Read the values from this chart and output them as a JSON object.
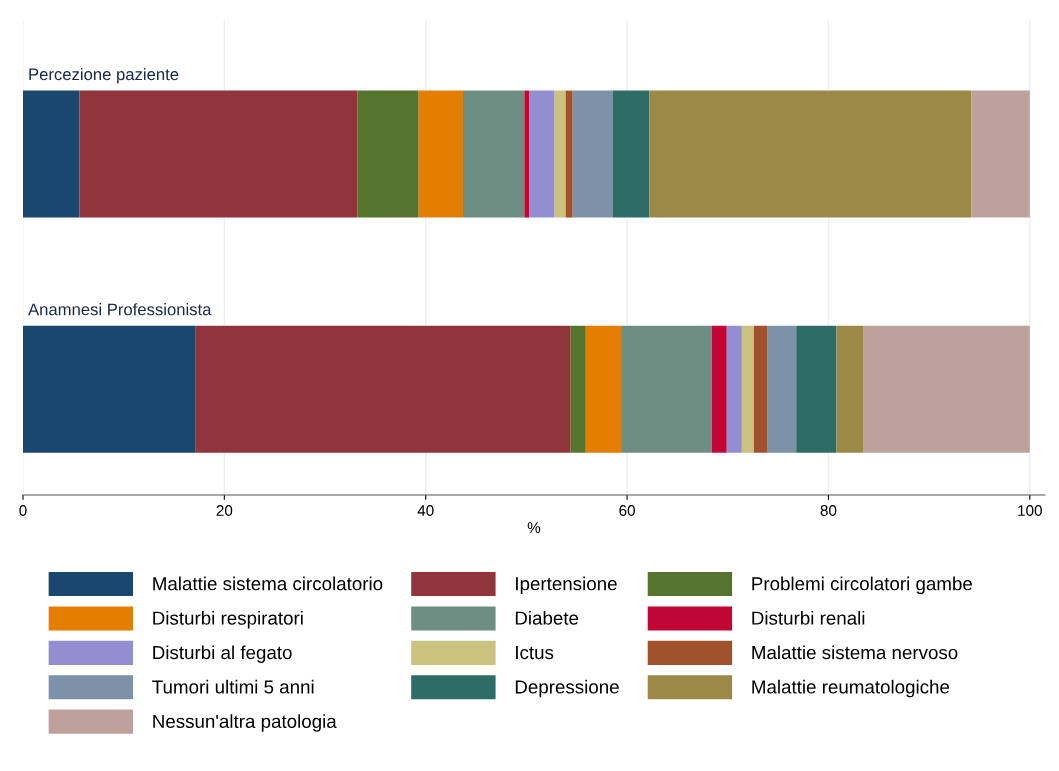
{
  "chart_data": {
    "type": "bar",
    "orientation": "horizontal",
    "stacked": true,
    "xlabel": "%",
    "categories": [
      "Percezione paziente",
      "Anamnesi Professionista"
    ],
    "xlim": [
      0,
      101.5
    ],
    "xticks": [
      0,
      20,
      40,
      60,
      80,
      100
    ],
    "grid": "x",
    "legend": "bottom",
    "series": [
      {
        "name": "Malattie sistema circolatorio",
        "color": "#1a476f",
        "values": [
          5.6,
          17.1
        ]
      },
      {
        "name": "Ipertensione",
        "color": "#90353b",
        "values": [
          27.6,
          37.3
        ]
      },
      {
        "name": "Problemi circolatori gambe",
        "color": "#55752f",
        "values": [
          6.1,
          1.5
        ]
      },
      {
        "name": "Disturbi respiratori",
        "color": "#e37e00",
        "values": [
          4.4,
          3.5
        ]
      },
      {
        "name": "Diabete",
        "color": "#6e8e84",
        "values": [
          6.1,
          9.0
        ]
      },
      {
        "name": "Disturbi renali",
        "color": "#c10534",
        "values": [
          0.5,
          1.5
        ]
      },
      {
        "name": "Disturbi al fegato",
        "color": "#938dd2",
        "values": [
          2.5,
          1.5
        ]
      },
      {
        "name": "Ictus",
        "color": "#cac27e",
        "values": [
          1.1,
          1.2
        ]
      },
      {
        "name": "Malattie sistema nervoso",
        "color": "#a0522d",
        "values": [
          0.7,
          1.3
        ]
      },
      {
        "name": "Tumori ultimi 5 anni",
        "color": "#7b92a8",
        "values": [
          4.0,
          2.9
        ]
      },
      {
        "name": "Depressione",
        "color": "#2d6d66",
        "values": [
          3.6,
          4.0
        ]
      },
      {
        "name": "Malattie reumatologiche",
        "color": "#9c8847",
        "values": [
          32.0,
          2.7
        ]
      },
      {
        "name": "Nessun'altra patologia",
        "color": "#bfa19c",
        "values": [
          5.8,
          16.5
        ]
      }
    ]
  }
}
